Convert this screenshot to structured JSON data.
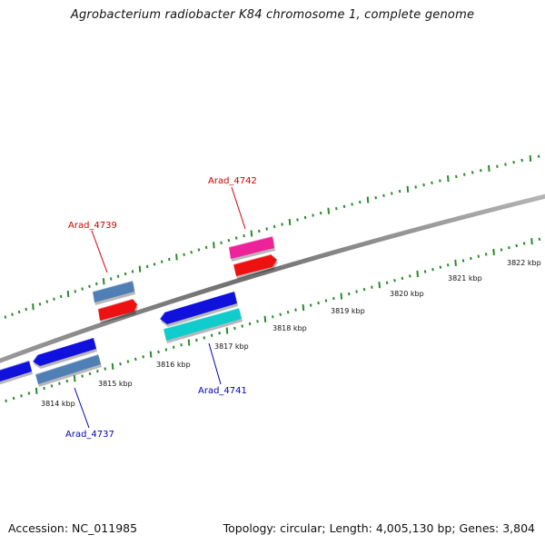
{
  "title": "Agrobacterium radiobacter K84 chromosome 1, complete genome",
  "footer": {
    "accession": "Accession: NC_011985",
    "summary": "Topology: circular; Length: 4,005,130 bp; Genes: 3,804"
  },
  "colors": {
    "backbone": "#7a7a7a",
    "ticks": "#2a8a2a",
    "forward_label": "#cc0000",
    "reverse_label": "#0000bb"
  },
  "kbp_labels": [
    "3814 kbp",
    "3815 kbp",
    "3816 kbp",
    "3817 kbp",
    "3818 kbp",
    "3819 kbp",
    "3820 kbp",
    "3821 kbp",
    "3822 kbp"
  ],
  "gene_labels": [
    {
      "text": "Arad_4739",
      "strand": "forward"
    },
    {
      "text": "Arad_4742",
      "strand": "forward"
    },
    {
      "text": "Arad_4737",
      "strand": "reverse"
    },
    {
      "text": "Arad_4741",
      "strand": "reverse"
    }
  ],
  "features": [
    {
      "name": "feature-steelblue-forward",
      "color": "#4f7fb5"
    },
    {
      "name": "feature-red-forward-1",
      "color": "#ee1111"
    },
    {
      "name": "feature-magenta-forward",
      "color": "#ee2299"
    },
    {
      "name": "feature-red-forward-2",
      "color": "#ee1111"
    },
    {
      "name": "feature-blue-left-edge",
      "color": "#1111dd"
    },
    {
      "name": "feature-blue-reverse-1",
      "color": "#1111dd"
    },
    {
      "name": "feature-blue-reverse-2",
      "color": "#1111dd"
    },
    {
      "name": "feature-steelblue-reverse",
      "color": "#4f7fb5"
    },
    {
      "name": "feature-cyan-reverse",
      "color": "#11cccc"
    }
  ]
}
